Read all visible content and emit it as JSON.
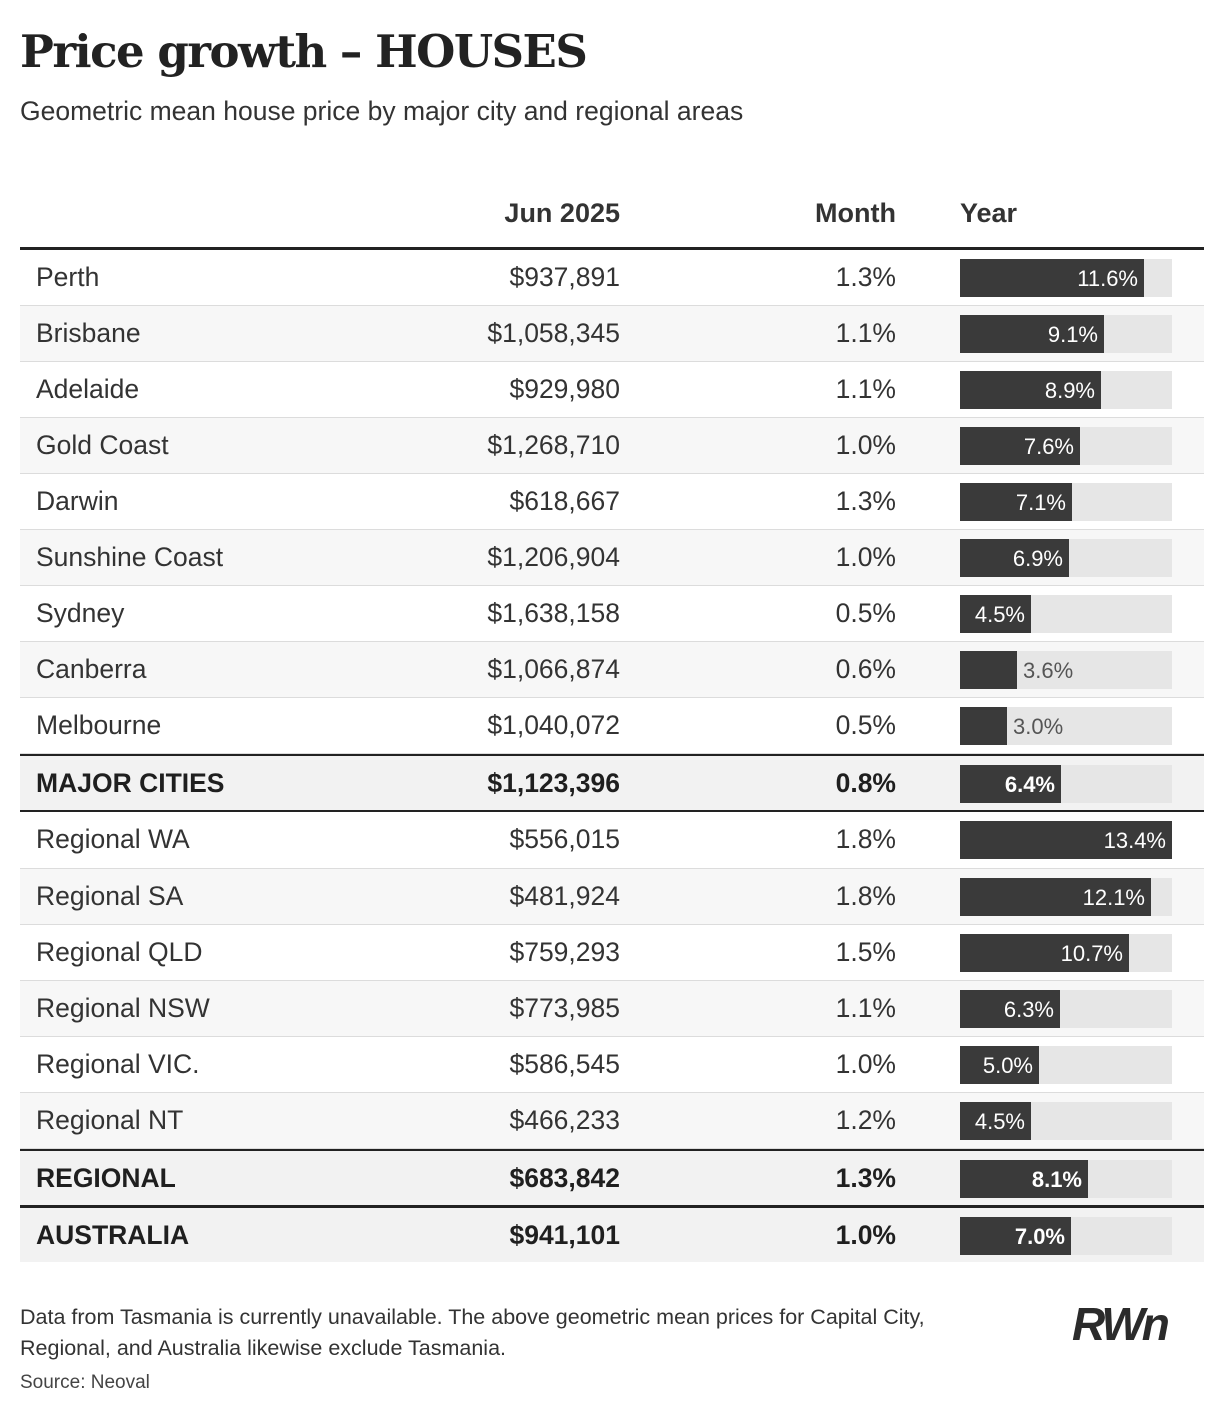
{
  "title": "Price growth – HOUSES",
  "subtitle": "Geometric mean house price by major city and regional areas",
  "columns": {
    "price": "Jun 2025",
    "month": "Month",
    "year": "Year"
  },
  "footnote": "Data from Tasmania is currently unavailable. The above geometric mean prices for Capital City, Regional, and Australia likewise exclude Tasmania.",
  "source": "Source: Neoval",
  "logo_text": "RWn",
  "colors": {
    "bar": "#3a3a3a",
    "track": "#e6e6e6",
    "rule": "#222222"
  },
  "chart_data": {
    "type": "table",
    "year_bar_max": 13.4,
    "rows": [
      {
        "name": "Perth",
        "price": "$937,891",
        "month": "1.3%",
        "year": "11.6%",
        "year_value": 11.6,
        "kind": "city"
      },
      {
        "name": "Brisbane",
        "price": "$1,058,345",
        "month": "1.1%",
        "year": "9.1%",
        "year_value": 9.1,
        "kind": "city"
      },
      {
        "name": "Adelaide",
        "price": "$929,980",
        "month": "1.1%",
        "year": "8.9%",
        "year_value": 8.9,
        "kind": "city"
      },
      {
        "name": "Gold Coast",
        "price": "$1,268,710",
        "month": "1.0%",
        "year": "7.6%",
        "year_value": 7.6,
        "kind": "city"
      },
      {
        "name": "Darwin",
        "price": "$618,667",
        "month": "1.3%",
        "year": "7.1%",
        "year_value": 7.1,
        "kind": "city"
      },
      {
        "name": "Sunshine Coast",
        "price": "$1,206,904",
        "month": "1.0%",
        "year": "6.9%",
        "year_value": 6.9,
        "kind": "city"
      },
      {
        "name": "Sydney",
        "price": "$1,638,158",
        "month": "0.5%",
        "year": "4.5%",
        "year_value": 4.5,
        "kind": "city"
      },
      {
        "name": "Canberra",
        "price": "$1,066,874",
        "month": "0.6%",
        "year": "3.6%",
        "year_value": 3.6,
        "kind": "city"
      },
      {
        "name": "Melbourne",
        "price": "$1,040,072",
        "month": "0.5%",
        "year": "3.0%",
        "year_value": 3.0,
        "kind": "city"
      },
      {
        "name": "MAJOR CITIES",
        "price": "$1,123,396",
        "month": "0.8%",
        "year": "6.4%",
        "year_value": 6.4,
        "kind": "summary"
      },
      {
        "name": "Regional WA",
        "price": "$556,015",
        "month": "1.8%",
        "year": "13.4%",
        "year_value": 13.4,
        "kind": "regional"
      },
      {
        "name": "Regional SA",
        "price": "$481,924",
        "month": "1.8%",
        "year": "12.1%",
        "year_value": 12.1,
        "kind": "regional"
      },
      {
        "name": "Regional QLD",
        "price": "$759,293",
        "month": "1.5%",
        "year": "10.7%",
        "year_value": 10.7,
        "kind": "regional"
      },
      {
        "name": "Regional NSW",
        "price": "$773,985",
        "month": "1.1%",
        "year": "6.3%",
        "year_value": 6.3,
        "kind": "regional"
      },
      {
        "name": "Regional VIC.",
        "price": "$586,545",
        "month": "1.0%",
        "year": "5.0%",
        "year_value": 5.0,
        "kind": "regional"
      },
      {
        "name": "Regional NT",
        "price": "$466,233",
        "month": "1.2%",
        "year": "4.5%",
        "year_value": 4.5,
        "kind": "regional"
      },
      {
        "name": "REGIONAL",
        "price": "$683,842",
        "month": "1.3%",
        "year": "8.1%",
        "year_value": 8.1,
        "kind": "summary"
      },
      {
        "name": "AUSTRALIA",
        "price": "$941,101",
        "month": "1.0%",
        "year": "7.0%",
        "year_value": 7.0,
        "kind": "summary"
      }
    ]
  }
}
